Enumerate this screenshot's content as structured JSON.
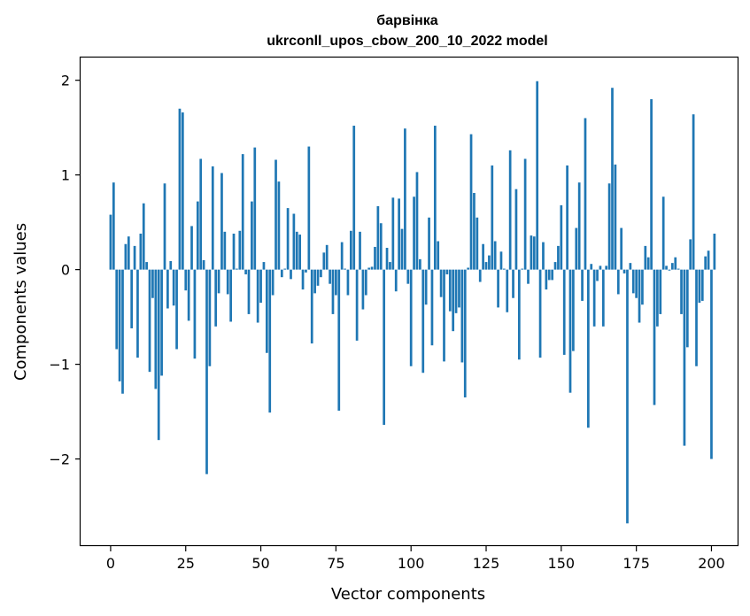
{
  "chart_data": {
    "type": "bar",
    "title": "барвінка",
    "subtitle": "ukrconll_upos_cbow_200_10_2022 model",
    "xlabel": "Vector components",
    "ylabel": "Components values",
    "xlim": [
      -10,
      209
    ],
    "ylim": [
      -2.92,
      2.24
    ],
    "xticks": [
      0,
      25,
      50,
      75,
      100,
      125,
      150,
      175,
      200
    ],
    "yticks": [
      -2,
      -1,
      0,
      1,
      2
    ],
    "ytick_labels": [
      "−2",
      "−1",
      "0",
      "1",
      "2"
    ],
    "bar_color": "#1f77b4",
    "grid": false,
    "legend": "none",
    "values": [
      0.58,
      0.92,
      -0.84,
      -1.18,
      -1.31,
      0.27,
      0.35,
      -0.62,
      0.25,
      -0.93,
      0.38,
      0.7,
      0.08,
      -1.08,
      -0.3,
      -1.26,
      -1.8,
      -1.12,
      0.91,
      -0.41,
      0.09,
      -0.38,
      -0.84,
      1.7,
      1.66,
      -0.22,
      -0.54,
      0.46,
      -0.94,
      0.72,
      1.17,
      0.1,
      -2.16,
      -1.02,
      1.09,
      -0.6,
      -0.25,
      1.02,
      0.4,
      -0.26,
      -0.55,
      0.38,
      0.01,
      0.41,
      1.22,
      -0.05,
      -0.47,
      0.72,
      1.29,
      -0.56,
      -0.35,
      0.08,
      -0.88,
      -1.51,
      -0.27,
      1.16,
      0.93,
      -0.08,
      0.01,
      0.65,
      -0.1,
      0.59,
      0.4,
      0.37,
      -0.21,
      -0.03,
      1.3,
      -0.78,
      -0.25,
      -0.17,
      -0.08,
      0.18,
      0.26,
      -0.15,
      -0.47,
      -0.27,
      -1.49,
      0.29,
      0.01,
      -0.27,
      0.41,
      1.52,
      -0.75,
      0.4,
      -0.42,
      -0.27,
      0.02,
      0.03,
      0.24,
      0.67,
      0.49,
      -1.64,
      0.23,
      0.08,
      0.76,
      -0.23,
      0.75,
      0.43,
      1.49,
      -0.15,
      -1.02,
      0.77,
      1.03,
      0.11,
      -1.09,
      -0.37,
      0.55,
      -0.8,
      1.52,
      0.3,
      -0.29,
      -0.97,
      -0.05,
      -0.44,
      -0.65,
      -0.46,
      -0.4,
      -0.98,
      -1.35,
      0.02,
      1.43,
      0.81,
      0.55,
      -0.13,
      0.27,
      0.08,
      0.15,
      1.1,
      0.3,
      -0.4,
      0.19,
      0.01,
      -0.45,
      1.26,
      -0.3,
      0.85,
      -0.95,
      0.01,
      1.17,
      -0.15,
      0.36,
      0.35,
      1.99,
      -0.93,
      0.29,
      -0.21,
      -0.11,
      -0.11,
      0.08,
      0.25,
      0.68,
      -0.9,
      1.1,
      -1.3,
      -0.86,
      0.44,
      0.92,
      -0.33,
      1.6,
      -1.67,
      0.06,
      -0.6,
      -0.12,
      0.04,
      -0.6,
      0.04,
      0.91,
      1.92,
      1.11,
      -0.26,
      0.44,
      -0.04,
      -2.68,
      0.07,
      -0.25,
      -0.3,
      -0.56,
      -0.37,
      0.25,
      0.13,
      1.8,
      -1.43,
      -0.6,
      -0.47,
      0.77,
      0.04,
      -0.01,
      0.07,
      0.13,
      0.01,
      -0.47,
      -1.86,
      -0.82,
      0.32,
      1.64,
      -1.02,
      -0.35,
      -0.33,
      0.14,
      0.2,
      -2.0,
      0.38
    ]
  }
}
